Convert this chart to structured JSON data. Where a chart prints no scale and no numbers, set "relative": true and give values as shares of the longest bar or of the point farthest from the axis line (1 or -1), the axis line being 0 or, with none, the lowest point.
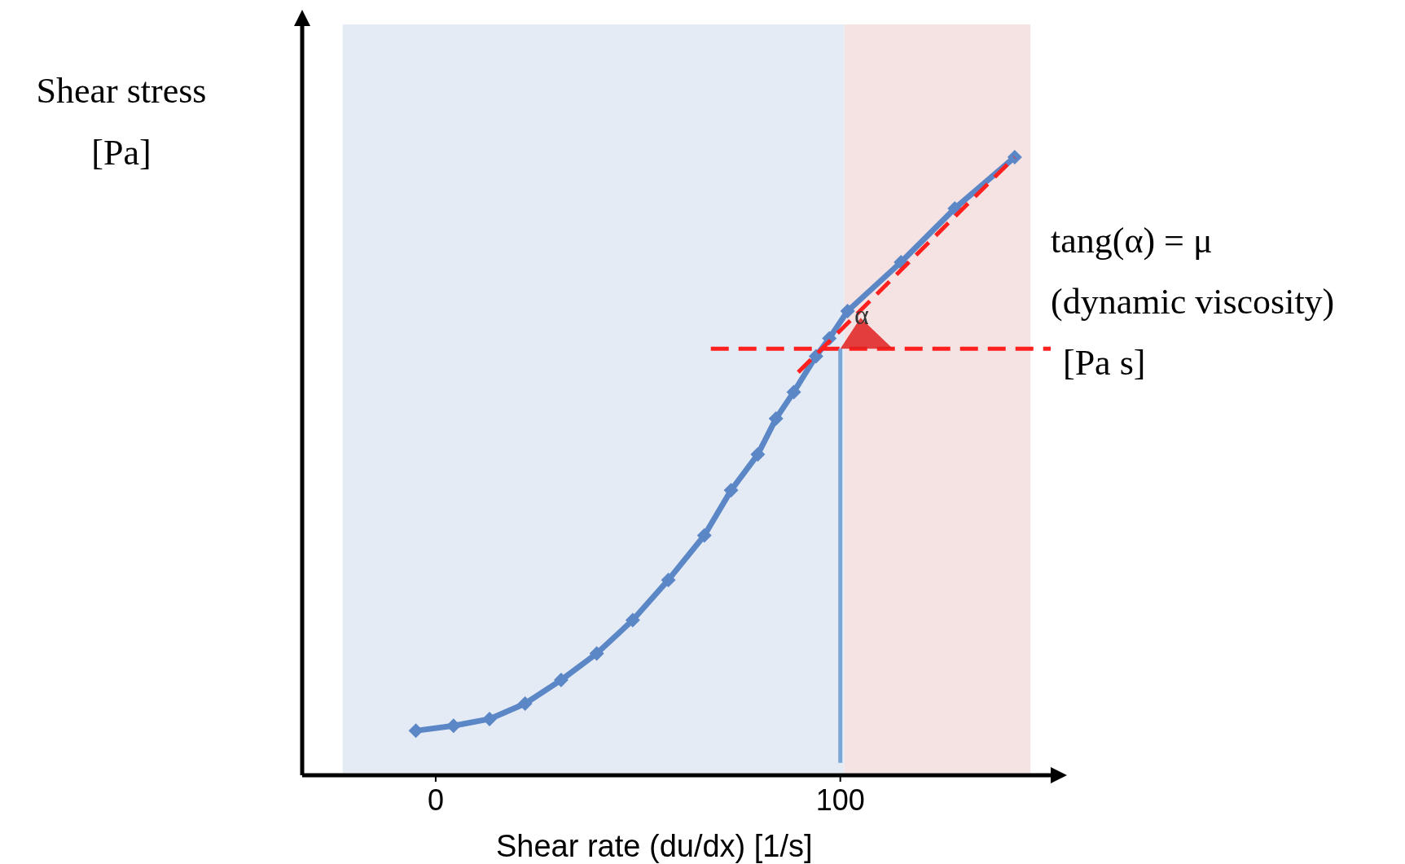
{
  "chart_data": {
    "type": "line",
    "xlabel": "Shear rate (du/dx) [1/s]",
    "ylabel": "Shear stress\n[Pa]",
    "relative": true,
    "xlim": [
      -33,
      152
    ],
    "xticks": [
      0,
      100
    ],
    "bands": [
      {
        "axis": "x",
        "from": -23,
        "to": 101,
        "color": "#e4ebf4"
      },
      {
        "axis": "x",
        "from": 101,
        "to": 147,
        "color": "#f5e3e3"
      }
    ],
    "annotations": [
      "α",
      "tang(α) = μ",
      "(dynamic viscosity)",
      "[Pa s]"
    ],
    "series": [
      {
        "color": "#5b87c7",
        "marker": "diamond",
        "line_style": "solid",
        "x": [
          -4.9,
          4.4,
          13.3,
          22.1,
          31.0,
          39.8,
          48.7,
          57.5,
          66.4,
          73.0,
          79.6,
          84.1,
          88.5,
          94.0,
          97.3,
          101.8,
          115.0,
          128.3,
          143.1
        ],
        "values": [
          0.072,
          0.08,
          0.091,
          0.116,
          0.154,
          0.197,
          0.251,
          0.316,
          0.388,
          0.461,
          0.519,
          0.577,
          0.62,
          0.678,
          0.707,
          0.751,
          0.83,
          0.917,
          1.0
        ]
      },
      {
        "color": "#ff2020",
        "marker": "none",
        "line_style": "dashed",
        "x": [
          89.6,
          143.1
        ],
        "values": [
          0.652,
          1.0
        ]
      },
      {
        "color": "#ff2020",
        "marker": "none",
        "line_style": "dashed",
        "x": [
          68,
          152
        ],
        "values": [
          0.69,
          0.69
        ]
      },
      {
        "color": "#7aa6d8",
        "marker": "none",
        "line_style": "solid",
        "x": [
          100,
          100
        ],
        "values": [
          0.02,
          0.69
        ]
      }
    ]
  }
}
